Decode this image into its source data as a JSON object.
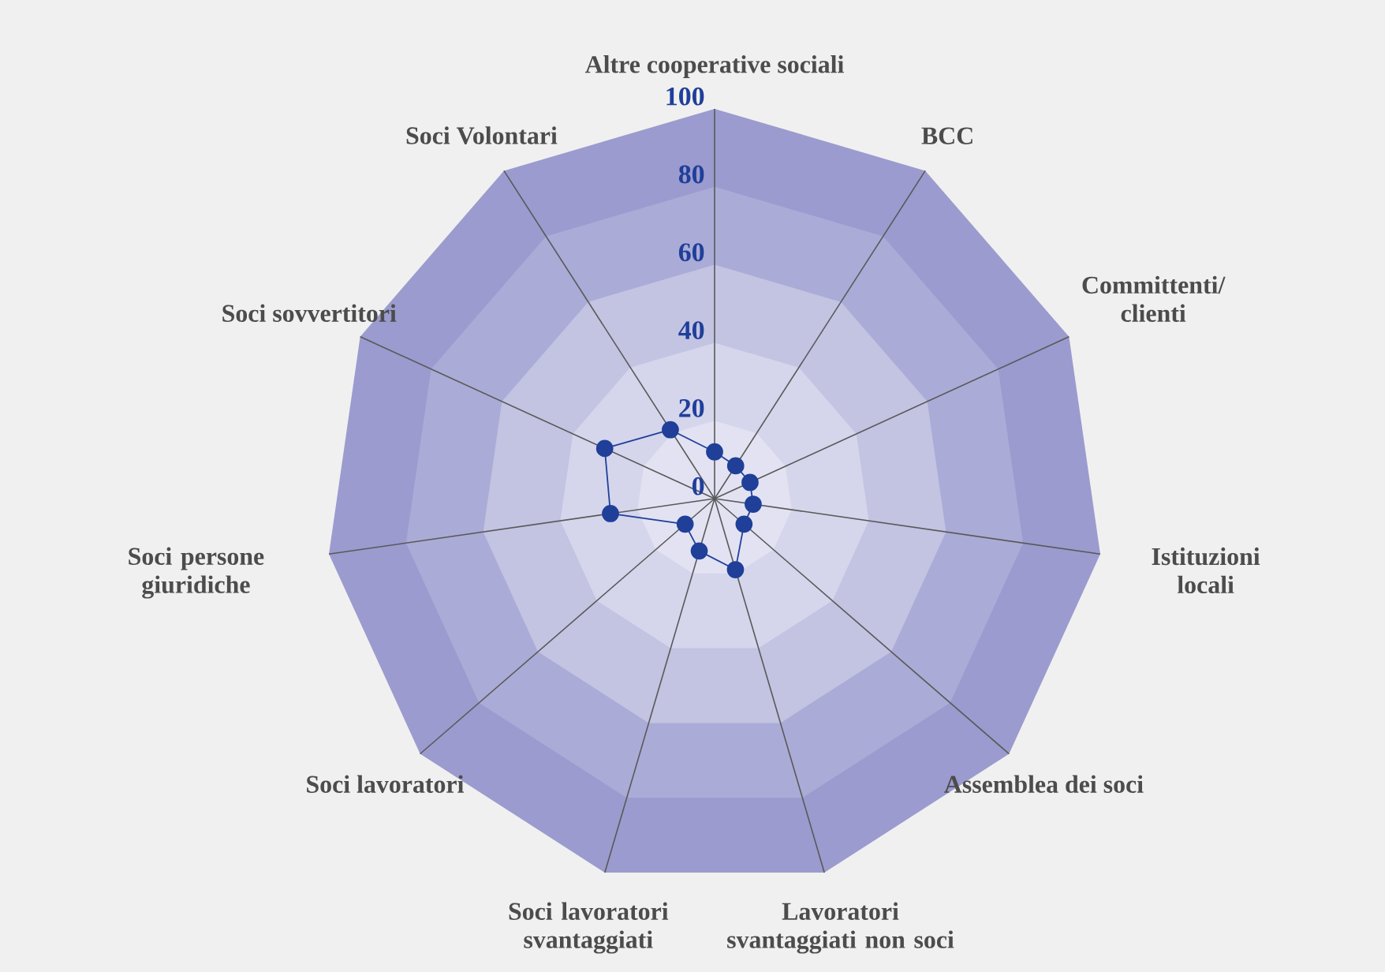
{
  "chart_data": {
    "type": "radar",
    "categories": [
      "Altre cooperative sociali",
      "BCC",
      "Committenti/ clienti",
      "Istituzioni locali",
      "Assemblea dei soci",
      "Lavoratori svantaggiati non soci",
      "Soci lavoratori svantaggiati",
      "Soci lavoratori",
      "Soci persone giuridiche",
      "Soci sovvertitori",
      "Soci Volontari"
    ],
    "series": [
      {
        "color": "#1f3f99",
        "values": [
          12,
          10,
          10,
          10,
          10,
          19,
          14,
          10,
          27,
          31,
          21
        ]
      }
    ],
    "ylim": [
      0,
      100
    ],
    "yticks": [
      0,
      20,
      40,
      60,
      80,
      100
    ],
    "grid": true,
    "marker": "circle"
  }
}
